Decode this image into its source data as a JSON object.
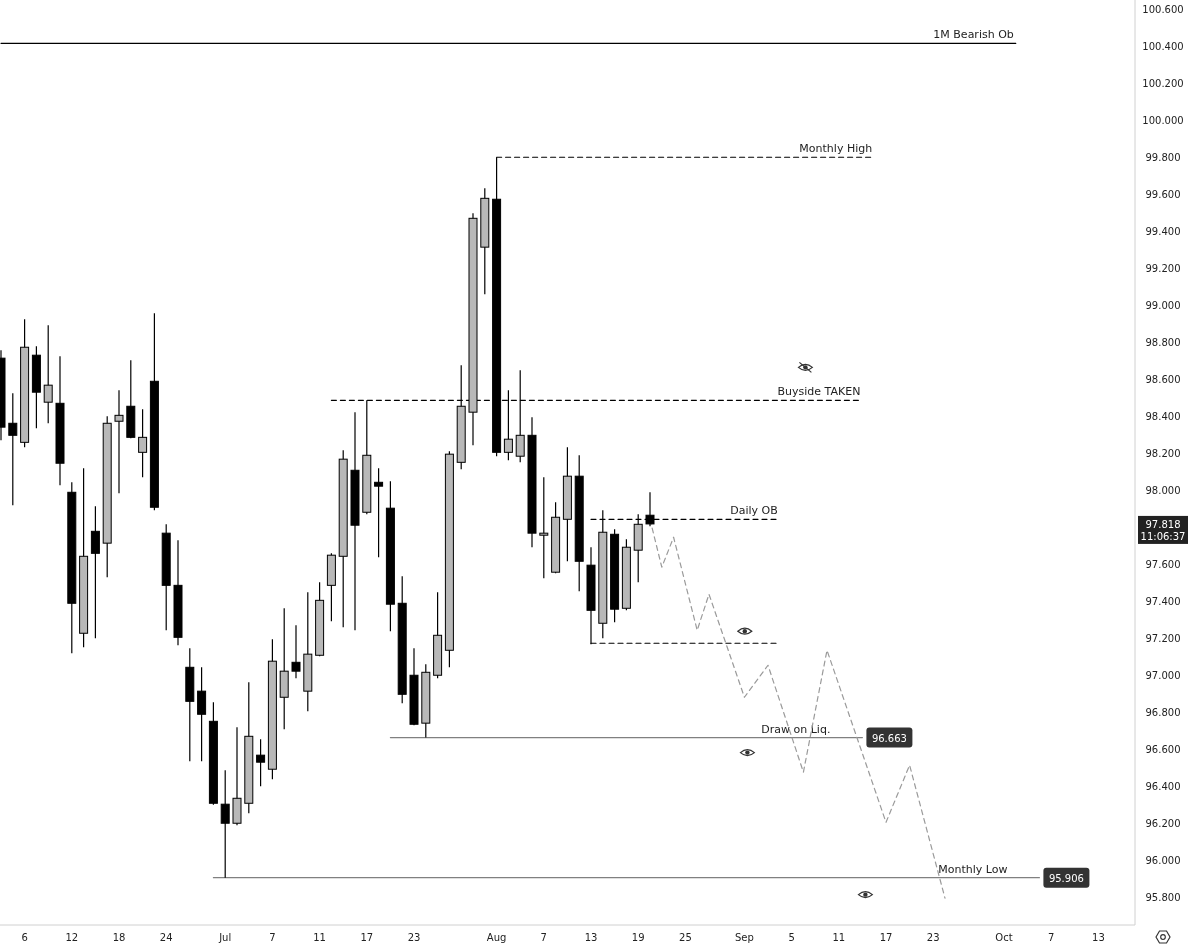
{
  "chart_data": {
    "type": "candlestick",
    "categories": [
      null,
      null,
      "6",
      null,
      null,
      null,
      "12",
      null,
      null,
      null,
      "18",
      null,
      null,
      null,
      "24",
      null,
      null,
      null,
      null,
      "Jul",
      null,
      null,
      null,
      "7",
      null,
      null,
      null,
      "11",
      null,
      null,
      null,
      "17",
      null,
      null,
      null,
      "23",
      null,
      null,
      null,
      null,
      null,
      null,
      "Aug",
      null,
      null,
      null,
      "7",
      null,
      null,
      null,
      "13",
      null,
      null,
      null,
      "19",
      null,
      null,
      null,
      "25",
      null,
      null,
      null,
      null,
      "Sep",
      null,
      null,
      null,
      "5",
      null,
      null,
      null,
      "11",
      null,
      null,
      null,
      "17",
      null,
      null,
      null,
      "23",
      null,
      null,
      null,
      null,
      null,
      "Oct",
      null,
      null,
      null,
      "7",
      null,
      null,
      null,
      "13",
      null,
      null
    ],
    "ohlc": [
      [
        98.714,
        98.757,
        98.27,
        98.341
      ],
      [
        98.362,
        98.524,
        97.919,
        98.297
      ],
      [
        98.259,
        98.924,
        98.232,
        98.773
      ],
      [
        98.73,
        98.778,
        98.335,
        98.53
      ],
      [
        98.476,
        98.892,
        98.362,
        98.568
      ],
      [
        98.47,
        98.724,
        98.027,
        98.146
      ],
      [
        97.989,
        98.043,
        97.119,
        97.389
      ],
      [
        97.227,
        98.119,
        97.151,
        97.643
      ],
      [
        97.778,
        97.914,
        97.2,
        97.659
      ],
      [
        97.714,
        98.4,
        97.53,
        98.362
      ],
      [
        98.373,
        98.541,
        97.984,
        98.405
      ],
      [
        98.454,
        98.703,
        98.281,
        98.286
      ],
      [
        98.205,
        98.438,
        98.07,
        98.286
      ],
      [
        98.589,
        98.957,
        97.892,
        97.908
      ],
      [
        97.768,
        97.816,
        97.243,
        97.486
      ],
      [
        97.486,
        97.73,
        97.162,
        97.205
      ],
      [
        97.043,
        97.146,
        96.535,
        96.859
      ],
      [
        96.914,
        97.043,
        96.535,
        96.789
      ],
      [
        96.751,
        96.854,
        96.3,
        96.308
      ],
      [
        96.303,
        96.486,
        95.906,
        96.2
      ],
      [
        96.2,
        96.719,
        96.189,
        96.335
      ],
      [
        96.308,
        96.962,
        96.254,
        96.67
      ],
      [
        96.568,
        96.654,
        96.4,
        96.53
      ],
      [
        96.492,
        97.195,
        96.438,
        97.076
      ],
      [
        96.881,
        97.362,
        96.708,
        97.022
      ],
      [
        97.07,
        97.27,
        96.984,
        97.022
      ],
      [
        96.914,
        97.449,
        96.805,
        97.114
      ],
      [
        97.108,
        97.503,
        97.103,
        97.405
      ],
      [
        97.486,
        97.659,
        97.292,
        97.649
      ],
      [
        97.643,
        98.216,
        97.259,
        98.168
      ],
      [
        98.108,
        98.422,
        97.243,
        97.811
      ],
      [
        97.881,
        98.486,
        97.87,
        98.189
      ],
      [
        98.043,
        98.119,
        97.638,
        98.022
      ],
      [
        97.903,
        98.049,
        97.238,
        97.384
      ],
      [
        97.389,
        97.535,
        96.849,
        96.897
      ],
      [
        97.0,
        97.146,
        96.73,
        96.735
      ],
      [
        96.741,
        97.059,
        96.663,
        97.016
      ],
      [
        97.0,
        97.449,
        96.984,
        97.216
      ],
      [
        97.135,
        98.211,
        97.043,
        98.195
      ],
      [
        98.151,
        98.676,
        98.114,
        98.454
      ],
      [
        98.422,
        99.497,
        98.243,
        99.47
      ],
      [
        99.314,
        99.632,
        99.059,
        99.578
      ],
      [
        99.573,
        99.8,
        98.184,
        98.205
      ],
      [
        98.205,
        98.541,
        98.162,
        98.276
      ],
      [
        98.184,
        98.649,
        98.151,
        98.297
      ],
      [
        98.297,
        98.395,
        97.692,
        97.768
      ],
      [
        97.757,
        98.07,
        97.524,
        97.768
      ],
      [
        97.557,
        97.935,
        97.551,
        97.854
      ],
      [
        97.843,
        98.232,
        97.616,
        98.076
      ],
      [
        98.076,
        98.189,
        97.454,
        97.616
      ],
      [
        97.595,
        97.692,
        97.168,
        97.351
      ],
      [
        97.281,
        97.892,
        97.2,
        97.773
      ],
      [
        97.762,
        97.789,
        97.286,
        97.357
      ],
      [
        97.362,
        97.735,
        97.351,
        97.692
      ],
      [
        97.676,
        97.87,
        97.503,
        97.816
      ],
      [
        97.865,
        97.989,
        97.805,
        97.818
      ],
      null,
      null,
      null,
      null,
      null,
      null,
      null,
      null,
      null,
      null,
      null,
      null,
      null,
      null,
      null,
      null,
      null,
      null,
      null,
      null,
      null,
      null,
      null,
      null,
      null,
      null,
      null,
      null,
      null,
      null,
      null,
      null,
      null,
      null,
      null,
      null,
      null,
      null,
      null,
      null
    ],
    "series": [
      {
        "type": "line",
        "name": "1M Bearish Ob",
        "color": "#000000",
        "line_style": "solid",
        "values": [
          100.416,
          100.416,
          100.416,
          100.416,
          100.416,
          100.416,
          100.416,
          100.416,
          100.416,
          100.416,
          100.416,
          100.416,
          100.416,
          100.416,
          100.416,
          100.416,
          100.416,
          100.416,
          100.416,
          100.416,
          100.416,
          100.416,
          100.416,
          100.416,
          100.416,
          100.416,
          100.416,
          100.416,
          100.416,
          100.416,
          100.416,
          100.416,
          100.416,
          100.416,
          100.416,
          100.416,
          100.416,
          100.416,
          100.416,
          100.416,
          100.416,
          100.416,
          100.416,
          100.416,
          100.416,
          100.416,
          100.416,
          100.416,
          100.416,
          100.416,
          100.416,
          100.416,
          100.416,
          100.416,
          100.416,
          100.416,
          100.416,
          100.416,
          100.416,
          100.416,
          100.416,
          100.416,
          100.416,
          100.416,
          100.416,
          100.416,
          100.416,
          100.416,
          100.416,
          100.416,
          100.416,
          100.416,
          100.416,
          100.416,
          100.416,
          100.416,
          100.416,
          100.416,
          100.416,
          100.416,
          100.416,
          100.416,
          100.416,
          100.416,
          100.416,
          100.416,
          100.416,
          null,
          null,
          null,
          null,
          null,
          null,
          null,
          null,
          null
        ]
      },
      {
        "type": "line",
        "name": "Monthly High",
        "color": "#000000",
        "line_style": "dashed",
        "values": [
          null,
          null,
          null,
          null,
          null,
          null,
          null,
          null,
          null,
          null,
          null,
          null,
          null,
          null,
          null,
          null,
          null,
          null,
          null,
          null,
          null,
          null,
          null,
          null,
          null,
          null,
          null,
          null,
          null,
          null,
          null,
          null,
          null,
          null,
          null,
          null,
          null,
          null,
          null,
          null,
          null,
          null,
          99.8,
          99.8,
          99.8,
          99.8,
          99.8,
          99.8,
          99.8,
          99.8,
          99.8,
          99.8,
          99.8,
          99.8,
          99.8,
          99.8,
          99.8,
          99.8,
          99.8,
          99.8,
          99.8,
          99.8,
          99.8,
          99.8,
          99.8,
          99.8,
          99.8,
          99.8,
          99.8,
          99.8,
          99.8,
          99.8,
          99.8,
          99.8,
          99.8,
          null,
          null,
          null,
          null,
          null,
          null,
          null,
          null,
          null,
          null,
          null,
          null,
          null,
          null,
          null,
          null,
          null,
          null,
          null,
          null,
          null
        ]
      },
      {
        "type": "line",
        "name": "Buyside TAKEN",
        "color": "#000000",
        "line_style": "dashed",
        "values": [
          null,
          null,
          null,
          null,
          null,
          null,
          null,
          null,
          null,
          null,
          null,
          null,
          null,
          null,
          null,
          null,
          null,
          null,
          null,
          null,
          null,
          null,
          null,
          null,
          null,
          null,
          null,
          null,
          98.486,
          98.486,
          98.486,
          98.486,
          98.486,
          98.486,
          98.486,
          98.486,
          98.486,
          98.486,
          98.486,
          98.486,
          98.486,
          98.486,
          98.486,
          98.486,
          98.486,
          98.486,
          98.486,
          98.486,
          98.486,
          98.486,
          98.486,
          98.486,
          98.486,
          98.486,
          98.486,
          98.486,
          98.486,
          98.486,
          98.486,
          98.486,
          98.486,
          98.486,
          98.486,
          98.486,
          98.486,
          98.486,
          98.486,
          98.486,
          98.486,
          98.486,
          98.486,
          98.486,
          98.486,
          98.486,
          null,
          null,
          null,
          null,
          null,
          null,
          null,
          null,
          null,
          null,
          null,
          null,
          null,
          null,
          null,
          null,
          null,
          null,
          null,
          null,
          null,
          null
        ]
      },
      {
        "type": "line",
        "name": "Daily OB",
        "color": "#000000",
        "line_style": "dashed",
        "values": [
          null,
          null,
          null,
          null,
          null,
          null,
          null,
          null,
          null,
          null,
          null,
          null,
          null,
          null,
          null,
          null,
          null,
          null,
          null,
          null,
          null,
          null,
          null,
          null,
          null,
          null,
          null,
          null,
          null,
          null,
          null,
          null,
          null,
          null,
          null,
          null,
          null,
          null,
          null,
          null,
          null,
          null,
          null,
          null,
          null,
          null,
          null,
          null,
          null,
          null,
          97.843,
          97.843,
          97.843,
          97.843,
          97.843,
          97.843,
          97.843,
          97.843,
          97.843,
          97.843,
          97.843,
          97.843,
          97.843,
          97.843,
          97.843,
          97.843,
          97.843,
          null,
          null,
          null,
          null,
          null,
          null,
          null,
          null,
          null,
          null,
          null,
          null,
          null,
          null,
          null,
          null,
          null,
          null,
          null,
          null,
          null,
          null,
          null,
          null,
          null,
          null,
          null,
          null,
          null
        ]
      },
      {
        "type": "line",
        "color": "#000000",
        "line_style": "dashed",
        "values": [
          null,
          null,
          null,
          null,
          null,
          null,
          null,
          null,
          null,
          null,
          null,
          null,
          null,
          null,
          null,
          null,
          null,
          null,
          null,
          null,
          null,
          null,
          null,
          null,
          null,
          null,
          null,
          null,
          null,
          null,
          null,
          null,
          null,
          null,
          null,
          null,
          null,
          null,
          null,
          null,
          null,
          null,
          null,
          null,
          null,
          null,
          null,
          null,
          null,
          null,
          97.173,
          97.173,
          97.173,
          97.173,
          97.173,
          97.173,
          97.173,
          97.173,
          97.173,
          97.173,
          97.173,
          97.173,
          97.173,
          97.173,
          97.173,
          97.173,
          97.173,
          null,
          null,
          null,
          null,
          null,
          null,
          null,
          null,
          null,
          null,
          null,
          null,
          null,
          null,
          null,
          null,
          null,
          null,
          null,
          null,
          null,
          null,
          null,
          null,
          null,
          null,
          null,
          null,
          null
        ]
      },
      {
        "type": "line",
        "name": "Draw on Liq.",
        "color": "#808080",
        "line_style": "solid",
        "values": [
          null,
          null,
          null,
          null,
          null,
          null,
          null,
          null,
          null,
          null,
          null,
          null,
          null,
          null,
          null,
          null,
          null,
          null,
          null,
          null,
          null,
          null,
          null,
          null,
          null,
          null,
          null,
          null,
          null,
          null,
          null,
          null,
          null,
          96.663,
          96.663,
          96.663,
          96.663,
          96.663,
          96.663,
          96.663,
          96.663,
          96.663,
          96.663,
          96.663,
          96.663,
          96.663,
          96.663,
          96.663,
          96.663,
          96.663,
          96.663,
          96.663,
          96.663,
          96.663,
          96.663,
          96.663,
          96.663,
          96.663,
          96.663,
          96.663,
          96.663,
          96.663,
          96.663,
          96.663,
          96.663,
          96.663,
          96.663,
          96.663,
          96.663,
          96.663,
          96.663,
          96.663,
          96.663,
          96.663,
          null,
          null,
          null,
          null,
          null,
          null,
          null,
          null,
          null,
          null,
          null,
          null,
          null,
          null,
          null,
          null,
          null,
          null,
          null,
          null,
          null,
          null
        ],
        "value_labels": [
          null,
          null,
          null,
          null,
          null,
          null,
          null,
          null,
          null,
          null,
          null,
          null,
          null,
          null,
          null,
          null,
          null,
          null,
          null,
          null,
          null,
          null,
          null,
          null,
          null,
          null,
          null,
          null,
          null,
          null,
          null,
          null,
          null,
          null,
          null,
          null,
          null,
          null,
          null,
          null,
          null,
          null,
          null,
          null,
          null,
          null,
          null,
          null,
          null,
          null,
          null,
          null,
          null,
          null,
          null,
          null,
          null,
          null,
          null,
          null,
          null,
          null,
          null,
          null,
          null,
          null,
          null,
          null,
          null,
          null,
          null,
          null,
          null,
          "96.663",
          null,
          null,
          null,
          null,
          null,
          null,
          null,
          null,
          null,
          null,
          null,
          null,
          null,
          null,
          null,
          null,
          null,
          null,
          null,
          null,
          null,
          null
        ]
      },
      {
        "type": "line",
        "name": "Monthly Low",
        "color": "#808080",
        "line_style": "solid",
        "values": [
          null,
          null,
          null,
          null,
          null,
          null,
          null,
          null,
          null,
          null,
          null,
          null,
          null,
          null,
          null,
          null,
          null,
          null,
          95.906,
          95.906,
          95.906,
          95.906,
          95.906,
          95.906,
          95.906,
          95.906,
          95.906,
          95.906,
          95.906,
          95.906,
          95.906,
          95.906,
          95.906,
          95.906,
          95.906,
          95.906,
          95.906,
          95.906,
          95.906,
          95.906,
          95.906,
          95.906,
          95.906,
          95.906,
          95.906,
          95.906,
          95.906,
          95.906,
          95.906,
          95.906,
          95.906,
          95.906,
          95.906,
          95.906,
          95.906,
          95.906,
          95.906,
          95.906,
          95.906,
          95.906,
          95.906,
          95.906,
          95.906,
          95.906,
          95.906,
          95.906,
          95.906,
          95.906,
          95.906,
          95.906,
          95.906,
          95.906,
          95.906,
          95.906,
          95.906,
          95.906,
          95.906,
          95.906,
          95.906,
          95.906,
          95.906,
          95.906,
          95.906,
          95.906,
          95.906,
          95.906,
          95.906,
          95.906,
          95.906,
          null,
          null,
          null,
          null,
          null,
          null,
          null
        ],
        "value_labels": [
          null,
          null,
          null,
          null,
          null,
          null,
          null,
          null,
          null,
          null,
          null,
          null,
          null,
          null,
          null,
          null,
          null,
          null,
          null,
          null,
          null,
          null,
          null,
          null,
          null,
          null,
          null,
          null,
          null,
          null,
          null,
          null,
          null,
          null,
          null,
          null,
          null,
          null,
          null,
          null,
          null,
          null,
          null,
          null,
          null,
          null,
          null,
          null,
          null,
          null,
          null,
          null,
          null,
          null,
          null,
          null,
          null,
          null,
          null,
          null,
          null,
          null,
          null,
          null,
          null,
          null,
          null,
          null,
          null,
          null,
          null,
          null,
          null,
          null,
          null,
          null,
          null,
          null,
          null,
          null,
          null,
          null,
          null,
          null,
          null,
          null,
          null,
          null,
          "95.906",
          null,
          null,
          null,
          null,
          null,
          null,
          null
        ]
      },
      {
        "type": "line",
        "color": "#9a9a9a",
        "line_style": "dashed",
        "values": [
          null,
          null,
          null,
          null,
          null,
          null,
          null,
          null,
          null,
          null,
          null,
          null,
          null,
          null,
          null,
          null,
          null,
          null,
          null,
          null,
          null,
          null,
          null,
          null,
          null,
          null,
          null,
          null,
          null,
          null,
          null,
          null,
          null,
          null,
          null,
          null,
          null,
          null,
          null,
          null,
          null,
          null,
          null,
          null,
          null,
          null,
          null,
          null,
          null,
          null,
          null,
          null,
          null,
          null,
          null,
          97.843,
          97.584,
          97.746,
          null,
          97.243,
          97.438,
          null,
          null,
          96.881,
          null,
          97.054,
          null,
          null,
          96.476,
          null,
          97.135,
          null,
          null,
          null,
          null,
          96.205,
          null,
          96.514,
          null,
          null,
          95.795,
          null,
          null,
          null,
          null,
          null,
          null,
          null,
          null,
          null,
          null,
          null,
          null,
          null,
          null,
          null
        ]
      }
    ],
    "ylim": [
      95.65,
      100.65
    ],
    "yticks": [
      {
        "value": 95.8,
        "label": "95.800"
      },
      {
        "value": 96.0,
        "label": "96.000"
      },
      {
        "value": 96.2,
        "label": "96.200"
      },
      {
        "value": 96.4,
        "label": "96.400"
      },
      {
        "value": 96.6,
        "label": "96.600"
      },
      {
        "value": 96.8,
        "label": "96.800"
      },
      {
        "value": 97.0,
        "label": "97.000"
      },
      {
        "value": 97.2,
        "label": "97.200"
      },
      {
        "value": 97.4,
        "label": "97.400"
      },
      {
        "value": 97.6,
        "label": "97.600"
      },
      {
        "value": 98.0,
        "label": "98.000"
      },
      {
        "value": 98.2,
        "label": "98.200"
      },
      {
        "value": 98.4,
        "label": "98.400"
      },
      {
        "value": 98.6,
        "label": "98.600"
      },
      {
        "value": 98.8,
        "label": "98.800"
      },
      {
        "value": 99.0,
        "label": "99.000"
      },
      {
        "value": 99.2,
        "label": "99.200"
      },
      {
        "value": 99.4,
        "label": "99.400"
      },
      {
        "value": 99.6,
        "label": "99.600"
      },
      {
        "value": 99.8,
        "label": "99.800"
      },
      {
        "value": 100.0,
        "label": "100.000"
      },
      {
        "value": 100.2,
        "label": "100.200"
      },
      {
        "value": 100.4,
        "label": "100.400"
      },
      {
        "value": 100.6,
        "label": "100.600"
      }
    ],
    "annotations": [
      "97.818",
      "11:06:37"
    ],
    "grid": false
  }
}
